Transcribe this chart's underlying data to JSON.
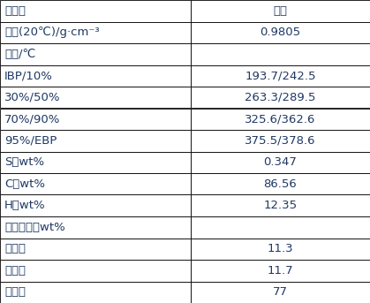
{
  "rows": [
    {
      "left": "原料油",
      "right": "数据",
      "is_header": true
    },
    {
      "left": "密度(20℃)/g·cm⁻³",
      "right": "0.9805",
      "is_header": false
    },
    {
      "left": "馏程/℃",
      "right": "",
      "is_header": false
    },
    {
      "left": "IBP/10%",
      "right": "193.7/242.5",
      "is_header": false
    },
    {
      "left": "30%/50%",
      "right": "263.3/289.5",
      "is_header": false
    },
    {
      "left": "70%/90%",
      "right": "325.6/362.6",
      "is_header": false
    },
    {
      "left": "95%/EBP",
      "right": "375.5/378.6",
      "is_header": false
    },
    {
      "left": "S，wt%",
      "right": "0.347",
      "is_header": false
    },
    {
      "left": "C，wt%",
      "right": "86.56",
      "is_header": false
    },
    {
      "left": "H，wt%",
      "right": "12.35",
      "is_header": false
    },
    {
      "left": "质谱组成，wt%",
      "right": "",
      "is_header": false
    },
    {
      "left": "链烷烃",
      "right": "11.3",
      "is_header": false
    },
    {
      "left": "总环烷",
      "right": "11.7",
      "is_header": false
    },
    {
      "left": "总芳烃",
      "right": "77",
      "is_header": false
    }
  ],
  "col_split": 0.515,
  "bg_color": "#ffffff",
  "border_color": "#000000",
  "text_color": "#1f3864",
  "font_size": 9.5,
  "figsize": [
    4.19,
    3.43
  ],
  "dpi": 100
}
